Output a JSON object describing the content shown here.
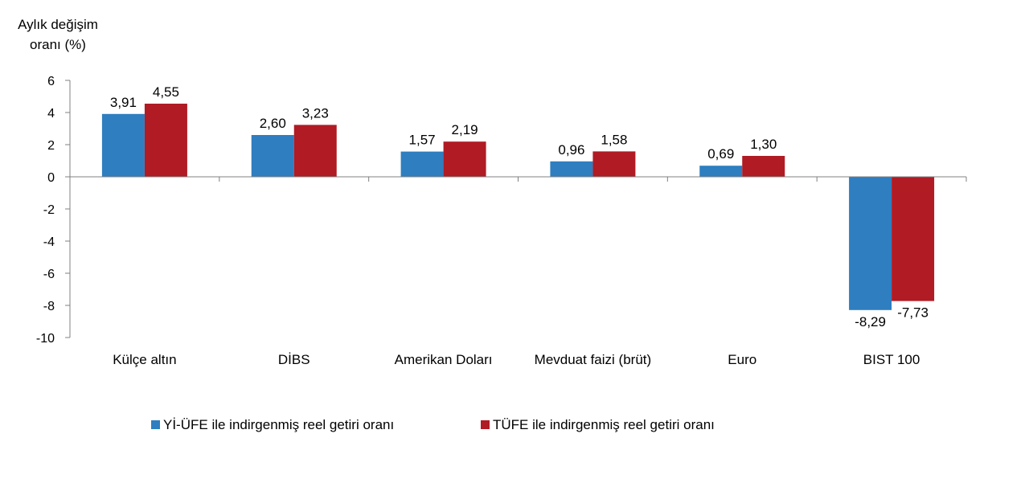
{
  "chart_data": {
    "type": "bar",
    "ylabel_lines": [
      "Aylık değişim",
      "oranı (%)"
    ],
    "categories": [
      "Külçe altın",
      "DİBS",
      "Amerikan Doları",
      "Mevduat faizi (brüt)",
      "Euro",
      "BIST 100"
    ],
    "series": [
      {
        "name": "Yİ-ÜFE ile indirgenmiş reel getiri oranı",
        "color": "#2E7EC0",
        "values": [
          3.91,
          2.6,
          1.57,
          0.96,
          0.69,
          -8.29
        ],
        "labels": [
          "3,91",
          "2,60",
          "1,57",
          "0,96",
          "0,69",
          "-8,29"
        ]
      },
      {
        "name": "TÜFE ile indirgenmiş reel getiri oranı",
        "color": "#B01B24",
        "values": [
          4.55,
          3.23,
          2.19,
          1.58,
          1.3,
          -7.73
        ],
        "labels": [
          "4,55",
          "3,23",
          "2,19",
          "1,58",
          "1,30",
          "-7,73"
        ]
      }
    ],
    "ylim": [
      -10,
      6
    ],
    "yticks": [
      6,
      4,
      2,
      0,
      -2,
      -4,
      -6,
      -8,
      -10
    ],
    "grid": false,
    "legend_position": "bottom"
  }
}
